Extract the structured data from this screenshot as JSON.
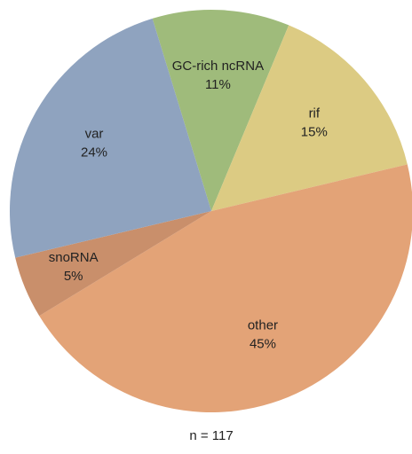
{
  "chart_data": {
    "type": "pie",
    "categories": [
      "GC-rich ncRNA",
      "rif",
      "other",
      "snoRNA",
      "var"
    ],
    "values": [
      11,
      15,
      45,
      5,
      24
    ],
    "value_labels": [
      "11%",
      "15%",
      "45%",
      "5%",
      "24%"
    ],
    "colors": [
      "#9fbb7b",
      "#dccb83",
      "#e3a377",
      "#c98f6b",
      "#8fa3bf"
    ],
    "caption": "n = 117"
  }
}
